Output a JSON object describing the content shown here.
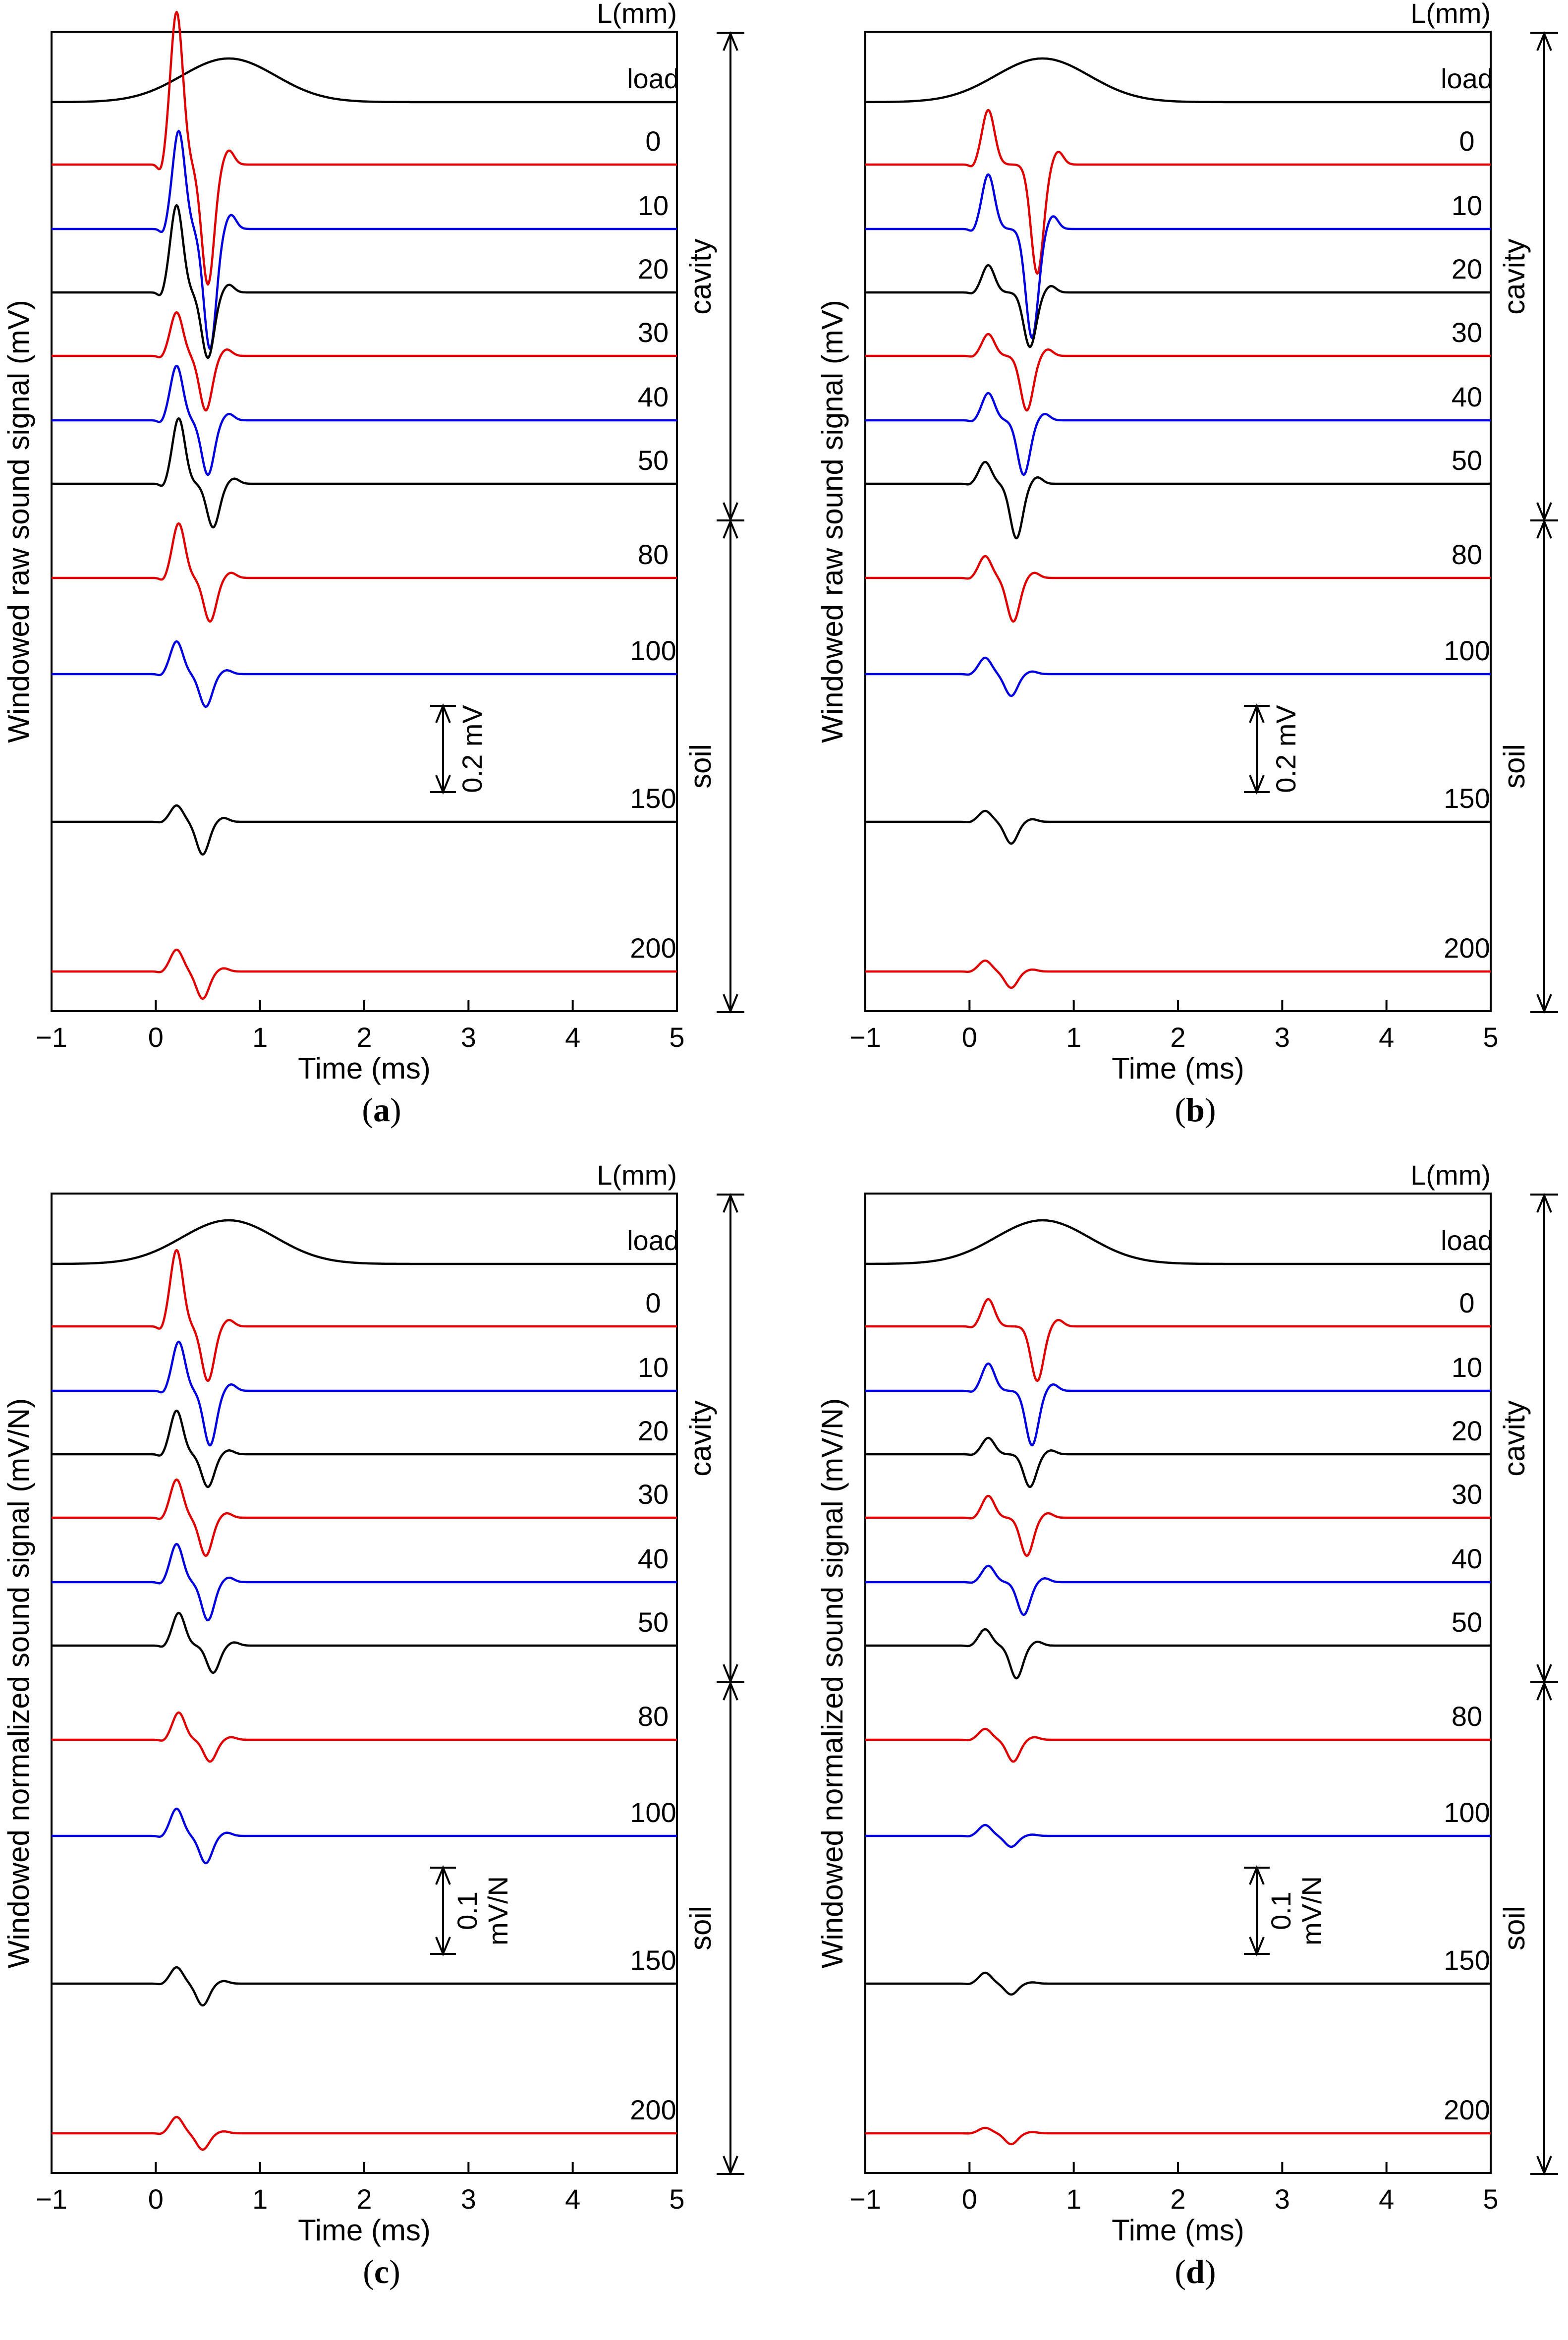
{
  "figure": {
    "x_axis": {
      "label": "Time (ms)",
      "lim": [
        -1,
        5
      ],
      "ticks": [
        -1,
        0,
        1,
        2,
        3,
        4,
        5
      ],
      "tick_labels": [
        "−1",
        "0",
        "1",
        "2",
        "3",
        "4",
        "5"
      ]
    },
    "trace_header": "L(mm)",
    "region_labels": {
      "cavity": "cavity",
      "soil": "soil"
    },
    "colors": {
      "red": "#e00000",
      "blue": "#0000e0",
      "black": "#000000"
    }
  },
  "chart_data": [
    {
      "type": "line",
      "subfigure": "(a)",
      "sub_letter": "a",
      "ylabel": "Windowed raw sound signal (mV)",
      "xlabel": "Time (ms)",
      "xlim": [
        -1,
        5
      ],
      "scale_bar": {
        "line1": "0.2 mV",
        "line2": ""
      },
      "traces": [
        {
          "label": "load",
          "color": "black",
          "group": "load"
        },
        {
          "label": "0",
          "color": "red",
          "group": "cavity",
          "peak": 0.28,
          "trough": -0.22,
          "tpeak": 0.2,
          "ttrough": 0.5
        },
        {
          "label": "10",
          "color": "blue",
          "group": "cavity",
          "peak": 0.18,
          "trough": -0.22,
          "tpeak": 0.22,
          "ttrough": 0.52
        },
        {
          "label": "20",
          "color": "black",
          "group": "cavity",
          "peak": 0.16,
          "trough": -0.12,
          "tpeak": 0.2,
          "ttrough": 0.5
        },
        {
          "label": "30",
          "color": "red",
          "group": "cavity",
          "peak": 0.08,
          "trough": -0.1,
          "tpeak": 0.2,
          "ttrough": 0.48
        },
        {
          "label": "40",
          "color": "blue",
          "group": "cavity",
          "peak": 0.1,
          "trough": -0.1,
          "tpeak": 0.2,
          "ttrough": 0.5
        },
        {
          "label": "50",
          "color": "black",
          "group": "cavity",
          "peak": 0.12,
          "trough": -0.08,
          "tpeak": 0.22,
          "ttrough": 0.55
        },
        {
          "label": "80",
          "color": "red",
          "group": "soil",
          "peak": 0.1,
          "trough": -0.08,
          "tpeak": 0.22,
          "ttrough": 0.52
        },
        {
          "label": "100",
          "color": "blue",
          "group": "soil",
          "peak": 0.06,
          "trough": -0.06,
          "tpeak": 0.2,
          "ttrough": 0.48
        },
        {
          "label": "150",
          "color": "black",
          "group": "soil",
          "peak": 0.03,
          "trough": -0.06,
          "tpeak": 0.2,
          "ttrough": 0.45
        },
        {
          "label": "200",
          "color": "red",
          "group": "soil",
          "peak": 0.04,
          "trough": -0.05,
          "tpeak": 0.2,
          "ttrough": 0.45
        }
      ]
    },
    {
      "type": "line",
      "subfigure": "(b)",
      "sub_letter": "b",
      "ylabel": "Windowed raw sound signal (mV)",
      "xlabel": "Time (ms)",
      "xlim": [
        -1,
        5
      ],
      "scale_bar": {
        "line1": "0.2 mV",
        "line2": ""
      },
      "traces": [
        {
          "label": "load",
          "color": "black",
          "group": "load"
        },
        {
          "label": "0",
          "color": "red",
          "group": "cavity",
          "peak": 0.1,
          "trough": -0.2,
          "tpeak": 0.18,
          "ttrough": 0.65
        },
        {
          "label": "10",
          "color": "blue",
          "group": "cavity",
          "peak": 0.1,
          "trough": -0.2,
          "tpeak": 0.18,
          "ttrough": 0.6
        },
        {
          "label": "20",
          "color": "black",
          "group": "cavity",
          "peak": 0.05,
          "trough": -0.1,
          "tpeak": 0.18,
          "ttrough": 0.58
        },
        {
          "label": "30",
          "color": "red",
          "group": "cavity",
          "peak": 0.04,
          "trough": -0.1,
          "tpeak": 0.18,
          "ttrough": 0.55
        },
        {
          "label": "40",
          "color": "blue",
          "group": "cavity",
          "peak": 0.05,
          "trough": -0.1,
          "tpeak": 0.18,
          "ttrough": 0.52
        },
        {
          "label": "50",
          "color": "black",
          "group": "cavity",
          "peak": 0.04,
          "trough": -0.1,
          "tpeak": 0.15,
          "ttrough": 0.45
        },
        {
          "label": "80",
          "color": "red",
          "group": "soil",
          "peak": 0.04,
          "trough": -0.08,
          "tpeak": 0.15,
          "ttrough": 0.42
        },
        {
          "label": "100",
          "color": "blue",
          "group": "soil",
          "peak": 0.03,
          "trough": -0.04,
          "tpeak": 0.15,
          "ttrough": 0.4
        },
        {
          "label": "150",
          "color": "black",
          "group": "soil",
          "peak": 0.02,
          "trough": -0.04,
          "tpeak": 0.15,
          "ttrough": 0.4
        },
        {
          "label": "200",
          "color": "red",
          "group": "soil",
          "peak": 0.02,
          "trough": -0.03,
          "tpeak": 0.15,
          "ttrough": 0.4
        }
      ]
    },
    {
      "type": "line",
      "subfigure": "(c)",
      "sub_letter": "c",
      "ylabel": "Windowed normalized sound signal (mV/N)",
      "xlabel": "Time (ms)",
      "xlim": [
        -1,
        5
      ],
      "scale_bar": {
        "line1": "0.1",
        "line2": "mV/N"
      },
      "traces": [
        {
          "label": "load",
          "color": "black",
          "group": "load"
        },
        {
          "label": "0",
          "color": "red",
          "group": "cavity",
          "peak": 0.14,
          "trough": -0.1,
          "tpeak": 0.2,
          "ttrough": 0.5
        },
        {
          "label": "10",
          "color": "blue",
          "group": "cavity",
          "peak": 0.09,
          "trough": -0.1,
          "tpeak": 0.22,
          "ttrough": 0.52
        },
        {
          "label": "20",
          "color": "black",
          "group": "cavity",
          "peak": 0.08,
          "trough": -0.06,
          "tpeak": 0.2,
          "ttrough": 0.5
        },
        {
          "label": "30",
          "color": "red",
          "group": "cavity",
          "peak": 0.07,
          "trough": -0.07,
          "tpeak": 0.2,
          "ttrough": 0.48
        },
        {
          "label": "40",
          "color": "blue",
          "group": "cavity",
          "peak": 0.07,
          "trough": -0.07,
          "tpeak": 0.2,
          "ttrough": 0.5
        },
        {
          "label": "50",
          "color": "black",
          "group": "cavity",
          "peak": 0.06,
          "trough": -0.05,
          "tpeak": 0.22,
          "ttrough": 0.55
        },
        {
          "label": "80",
          "color": "red",
          "group": "soil",
          "peak": 0.05,
          "trough": -0.04,
          "tpeak": 0.22,
          "ttrough": 0.52
        },
        {
          "label": "100",
          "color": "blue",
          "group": "soil",
          "peak": 0.05,
          "trough": -0.05,
          "tpeak": 0.2,
          "ttrough": 0.48
        },
        {
          "label": "150",
          "color": "black",
          "group": "soil",
          "peak": 0.03,
          "trough": -0.04,
          "tpeak": 0.2,
          "ttrough": 0.45
        },
        {
          "label": "200",
          "color": "red",
          "group": "soil",
          "peak": 0.03,
          "trough": -0.03,
          "tpeak": 0.2,
          "ttrough": 0.45
        }
      ]
    },
    {
      "type": "line",
      "subfigure": "(d)",
      "sub_letter": "d",
      "ylabel": "Windowed normalized sound signal (mV/N)",
      "xlabel": "Time (ms)",
      "xlim": [
        -1,
        5
      ],
      "scale_bar": {
        "line1": "0.1",
        "line2": "mV/N"
      },
      "traces": [
        {
          "label": "load",
          "color": "black",
          "group": "load"
        },
        {
          "label": "0",
          "color": "red",
          "group": "cavity",
          "peak": 0.05,
          "trough": -0.1,
          "tpeak": 0.18,
          "ttrough": 0.65
        },
        {
          "label": "10",
          "color": "blue",
          "group": "cavity",
          "peak": 0.05,
          "trough": -0.1,
          "tpeak": 0.18,
          "ttrough": 0.6
        },
        {
          "label": "20",
          "color": "black",
          "group": "cavity",
          "peak": 0.03,
          "trough": -0.06,
          "tpeak": 0.18,
          "ttrough": 0.58
        },
        {
          "label": "30",
          "color": "red",
          "group": "cavity",
          "peak": 0.04,
          "trough": -0.07,
          "tpeak": 0.18,
          "ttrough": 0.55
        },
        {
          "label": "40",
          "color": "blue",
          "group": "cavity",
          "peak": 0.03,
          "trough": -0.06,
          "tpeak": 0.18,
          "ttrough": 0.52
        },
        {
          "label": "50",
          "color": "black",
          "group": "cavity",
          "peak": 0.03,
          "trough": -0.06,
          "tpeak": 0.15,
          "ttrough": 0.45
        },
        {
          "label": "80",
          "color": "red",
          "group": "soil",
          "peak": 0.02,
          "trough": -0.04,
          "tpeak": 0.15,
          "ttrough": 0.42
        },
        {
          "label": "100",
          "color": "blue",
          "group": "soil",
          "peak": 0.02,
          "trough": -0.02,
          "tpeak": 0.15,
          "ttrough": 0.4
        },
        {
          "label": "150",
          "color": "black",
          "group": "soil",
          "peak": 0.02,
          "trough": -0.02,
          "tpeak": 0.15,
          "ttrough": 0.4
        },
        {
          "label": "200",
          "color": "red",
          "group": "soil",
          "peak": 0.01,
          "trough": -0.02,
          "tpeak": 0.15,
          "ttrough": 0.4
        }
      ]
    }
  ]
}
